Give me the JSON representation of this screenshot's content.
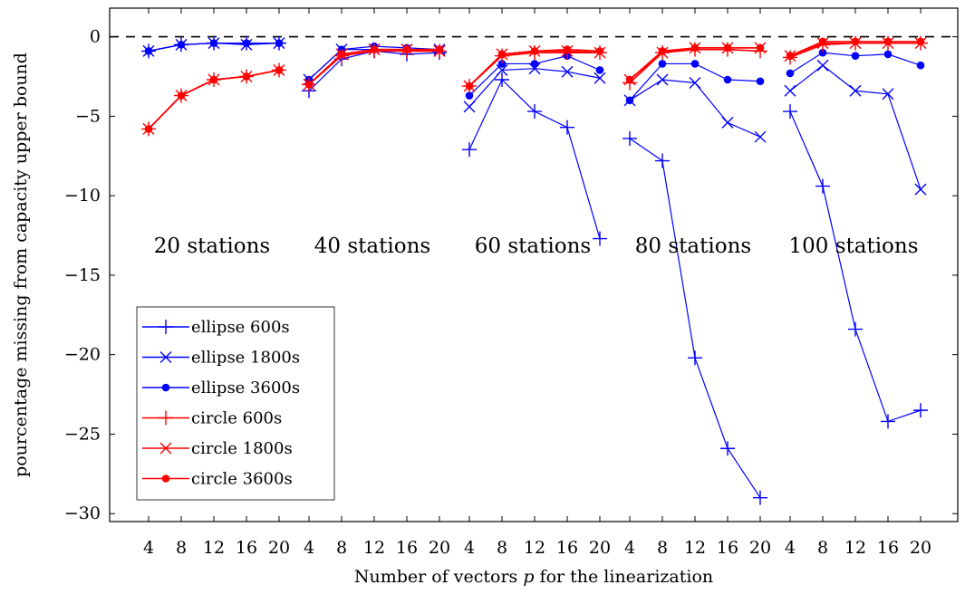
{
  "chart_data": {
    "type": "line",
    "xlabel_prefix": "Number of vectors ",
    "xlabel_var": "p",
    "xlabel_suffix": " for the linearization",
    "ylabel": "pourcentage missing from capacity upper bound",
    "ylim": [
      -30.5,
      1.8
    ],
    "yticks": [
      0,
      -5,
      -10,
      -15,
      -20,
      -25,
      -30
    ],
    "ytick_labels": [
      "0",
      "−5",
      "−10",
      "−15",
      "−20",
      "−25",
      "−30"
    ],
    "x": [
      4,
      8,
      12,
      16,
      20
    ],
    "x_tick_labels": [
      "4",
      "8",
      "12",
      "16",
      "20"
    ],
    "reference_line": 0,
    "legend_position": "bottom-left",
    "groups": [
      {
        "label": "20 stations",
        "series": {
          "ellipse_600": [
            -0.9,
            -0.5,
            -0.4,
            -0.4,
            -0.4
          ],
          "ellipse_1800": [
            -0.9,
            -0.5,
            -0.4,
            -0.5,
            -0.4
          ],
          "ellipse_3600": [
            -0.9,
            -0.5,
            -0.4,
            -0.4,
            -0.4
          ],
          "circle_600": [
            -5.8,
            -3.7,
            -2.7,
            -2.5,
            -2.1
          ],
          "circle_1800": [
            -5.8,
            -3.7,
            -2.7,
            -2.5,
            -2.1
          ],
          "circle_3600": [
            -5.8,
            -3.7,
            -2.7,
            -2.5,
            -2.1
          ]
        }
      },
      {
        "label": "40 stations",
        "series": {
          "ellipse_600": [
            -3.4,
            -1.4,
            -0.9,
            -1.1,
            -1.0
          ],
          "ellipse_1800": [
            -2.7,
            -0.8,
            -0.8,
            -0.8,
            -0.8
          ],
          "ellipse_3600": [
            -2.7,
            -0.8,
            -0.6,
            -0.7,
            -0.8
          ],
          "circle_600": [
            -3.0,
            -1.2,
            -0.9,
            -0.9,
            -0.9
          ],
          "circle_1800": [
            -3.0,
            -1.1,
            -0.8,
            -0.8,
            -0.9
          ],
          "circle_3600": [
            -3.0,
            -1.1,
            -0.8,
            -0.8,
            -0.8
          ]
        }
      },
      {
        "label": "60 stations",
        "series": {
          "ellipse_600": [
            -7.1,
            -2.7,
            -4.7,
            -5.7,
            -12.7
          ],
          "ellipse_1800": [
            -4.4,
            -2.1,
            -2.0,
            -2.2,
            -2.6
          ],
          "ellipse_3600": [
            -3.7,
            -1.7,
            -1.7,
            -1.2,
            -2.1
          ],
          "circle_600": [
            -3.1,
            -1.2,
            -1.0,
            -1.0,
            -1.0
          ],
          "circle_1800": [
            -3.1,
            -1.1,
            -0.9,
            -0.9,
            -1.0
          ],
          "circle_3600": [
            -3.1,
            -1.1,
            -0.9,
            -0.8,
            -0.9
          ]
        }
      },
      {
        "label": "80 stations",
        "series": {
          "ellipse_600": [
            -6.4,
            -7.8,
            -20.2,
            -25.9,
            -29.0
          ],
          "ellipse_1800": [
            -4.0,
            -2.7,
            -2.9,
            -5.4,
            -6.3
          ],
          "ellipse_3600": [
            -4.0,
            -1.7,
            -1.7,
            -2.7,
            -2.8
          ],
          "circle_600": [
            -2.9,
            -1.0,
            -0.8,
            -0.8,
            -0.9
          ],
          "circle_1800": [
            -2.7,
            -1.0,
            -0.7,
            -0.7,
            -0.7
          ],
          "circle_3600": [
            -2.7,
            -0.9,
            -0.7,
            -0.7,
            -0.7
          ]
        }
      },
      {
        "label": "100 stations",
        "series": {
          "ellipse_600": [
            -4.7,
            -9.4,
            -18.4,
            -24.2,
            -23.5
          ],
          "ellipse_1800": [
            -3.4,
            -1.8,
            -3.4,
            -3.6,
            -9.6
          ],
          "ellipse_3600": [
            -2.3,
            -1.0,
            -1.2,
            -1.1,
            -1.8
          ],
          "circle_600": [
            -1.3,
            -0.5,
            -0.4,
            -0.4,
            -0.4
          ],
          "circle_1800": [
            -1.2,
            -0.4,
            -0.4,
            -0.4,
            -0.4
          ],
          "circle_3600": [
            -1.2,
            -0.3,
            -0.3,
            -0.3,
            -0.3
          ]
        }
      }
    ],
    "series_meta": [
      {
        "key": "ellipse_600",
        "name": "ellipse 600s",
        "color": "#0000ff",
        "marker": "plus"
      },
      {
        "key": "ellipse_1800",
        "name": "ellipse 1800s",
        "color": "#0000ff",
        "marker": "cross"
      },
      {
        "key": "ellipse_3600",
        "name": "ellipse 3600s",
        "color": "#0000ff",
        "marker": "dot"
      },
      {
        "key": "circle_600",
        "name": "circle 600s",
        "color": "#ff0000",
        "marker": "plus"
      },
      {
        "key": "circle_1800",
        "name": "circle 1800s",
        "color": "#ff0000",
        "marker": "cross"
      },
      {
        "key": "circle_3600",
        "name": "circle 3600s",
        "color": "#ff0000",
        "marker": "dot"
      }
    ]
  }
}
